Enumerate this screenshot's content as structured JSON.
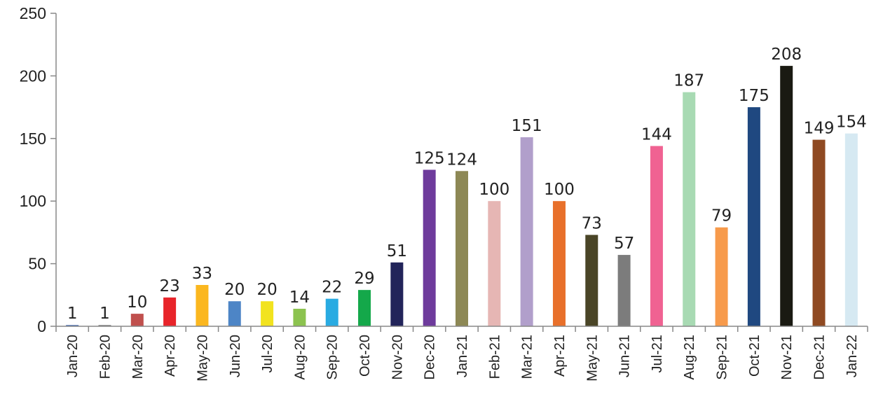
{
  "chart_data": {
    "type": "bar",
    "title": "",
    "xlabel": "",
    "ylabel": "",
    "ylim": [
      0,
      250
    ],
    "yticks": [
      0,
      50,
      100,
      150,
      200,
      250
    ],
    "grid": false,
    "legend": "none",
    "categories": [
      "Jan-20",
      "Feb-20",
      "Mar-20",
      "Apr-20",
      "May-20",
      "Jun-20",
      "Jul-20",
      "Aug-20",
      "Sep-20",
      "Oct-20",
      "Nov-20",
      "Dec-20",
      "Jan-21",
      "Feb-21",
      "Mar-21",
      "Apr-21",
      "May-21",
      "Jun-21",
      "Jul-21",
      "Aug-21",
      "Sep-21",
      "Oct-21",
      "Nov-21",
      "Dec-21",
      "Jan-22"
    ],
    "values": [
      1,
      1,
      10,
      23,
      33,
      20,
      20,
      14,
      22,
      29,
      51,
      125,
      124,
      100,
      151,
      100,
      73,
      57,
      144,
      187,
      79,
      175,
      208,
      149,
      154
    ],
    "colors": [
      "#4a6fb5",
      "#7f7f7f",
      "#c0504d",
      "#e8242a",
      "#fbb71f",
      "#4d85c6",
      "#f2e31f",
      "#8cc34f",
      "#29abe2",
      "#14a84a",
      "#22245a",
      "#6e3b9c",
      "#8d8855",
      "#e6b6b4",
      "#b19fcb",
      "#e8702a",
      "#4a4527",
      "#7c7c7c",
      "#f06292",
      "#a8dab3",
      "#f79a4b",
      "#1f4880",
      "#1a1a12",
      "#8f4a22",
      "#d6e9f2"
    ]
  }
}
